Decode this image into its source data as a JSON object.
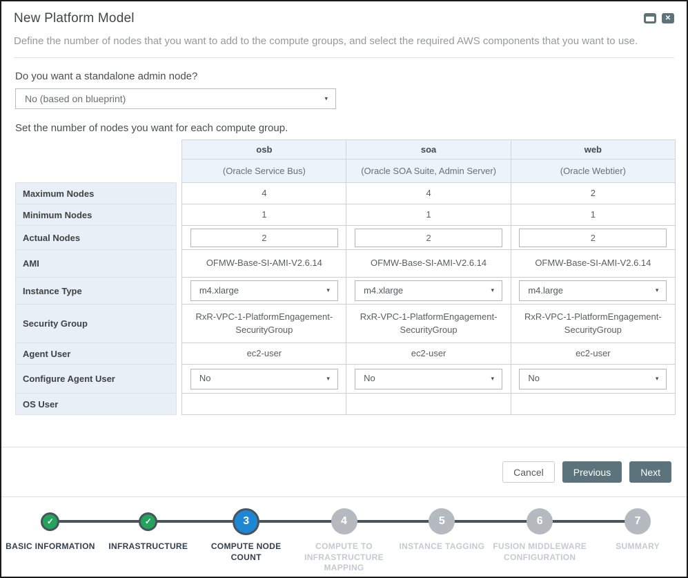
{
  "window": {
    "title": "New Platform Model",
    "subtitle": "Define the number of nodes that you want to add to the compute groups, and select the required AWS components that you want to use."
  },
  "ui": {
    "caret_glyph": "▾",
    "close_glyph": "✕"
  },
  "form": {
    "admin_node_question": "Do you want a standalone admin node?",
    "admin_node_value": "No (based on blueprint)",
    "table_caption": "Set the number of nodes you want for each compute group."
  },
  "table": {
    "columns": [
      {
        "name": "osb",
        "description": "(Oracle Service Bus)"
      },
      {
        "name": "soa",
        "description": "(Oracle SOA Suite, Admin Server)"
      },
      {
        "name": "web",
        "description": "(Oracle Webtier)"
      }
    ],
    "rows": [
      {
        "label": "Maximum Nodes",
        "type": "text",
        "values": [
          "4",
          "4",
          "2"
        ]
      },
      {
        "label": "Minimum Nodes",
        "type": "text",
        "values": [
          "1",
          "1",
          "1"
        ]
      },
      {
        "label": "Actual Nodes",
        "type": "input",
        "values": [
          "2",
          "2",
          "2"
        ]
      },
      {
        "label": "AMI",
        "type": "text",
        "values": [
          "OFMW-Base-SI-AMI-V2.6.14",
          "OFMW-Base-SI-AMI-V2.6.14",
          "OFMW-Base-SI-AMI-V2.6.14"
        ]
      },
      {
        "label": "Instance Type",
        "type": "select",
        "values": [
          "m4.xlarge",
          "m4.xlarge",
          "m4.large"
        ]
      },
      {
        "label": "Security Group",
        "type": "text",
        "values": [
          "RxR-VPC-1-PlatformEngagement-SecurityGroup",
          "RxR-VPC-1-PlatformEngagement-SecurityGroup",
          "RxR-VPC-1-PlatformEngagement-SecurityGroup"
        ]
      },
      {
        "label": "Agent User",
        "type": "text",
        "values": [
          "ec2-user",
          "ec2-user",
          "ec2-user"
        ]
      },
      {
        "label": "Configure Agent User",
        "type": "select",
        "values": [
          "No",
          "No",
          "No"
        ]
      },
      {
        "label": "OS User",
        "type": "text",
        "values": [
          "",
          "",
          ""
        ]
      }
    ]
  },
  "footer": {
    "cancel_label": "Cancel",
    "previous_label": "Previous",
    "next_label": "Next"
  },
  "wizard": {
    "steps": [
      {
        "label": "BASIC INFORMATION",
        "state": "completed",
        "glyph": "✓"
      },
      {
        "label": "INFRASTRUCTURE",
        "state": "completed",
        "glyph": "✓"
      },
      {
        "label": "COMPUTE NODE\nCOUNT",
        "state": "current",
        "number": "3"
      },
      {
        "label": "COMPUTE TO\nINFRASTRUCTURE\nMAPPING",
        "state": "future",
        "number": "4"
      },
      {
        "label": "INSTANCE TAGGING",
        "state": "future",
        "number": "5"
      },
      {
        "label": "FUSION MIDDLEWARE\nCONFIGURATION",
        "state": "future",
        "number": "6"
      },
      {
        "label": "SUMMARY",
        "state": "future",
        "number": "7"
      }
    ]
  },
  "colors": {
    "accent_blue": "#1d87d3",
    "success_green": "#23a45c",
    "slate_button": "#5d737c",
    "ring_dark": "#47545e",
    "header_bg": "#edf3fa",
    "label_bg": "#e9eff7"
  }
}
